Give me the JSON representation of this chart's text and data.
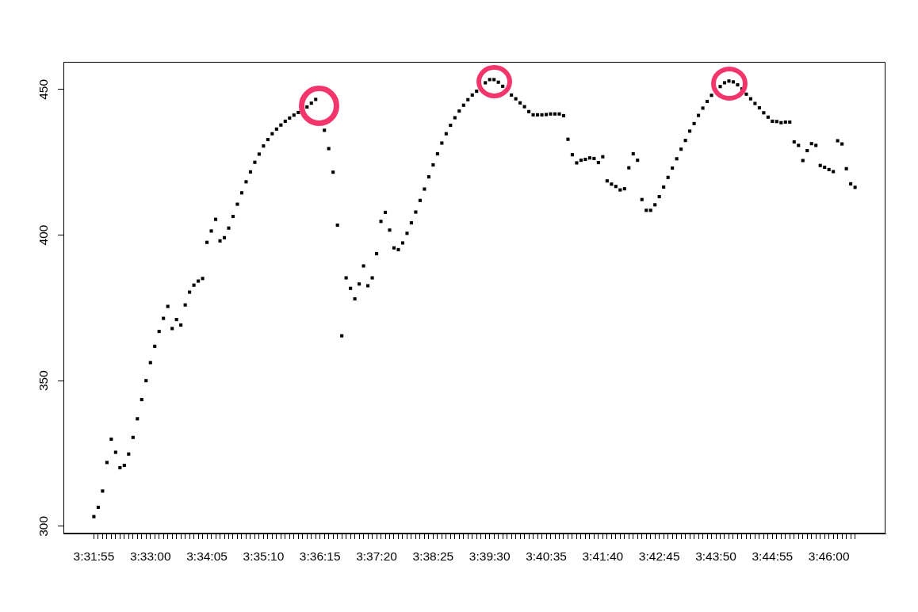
{
  "chart_data": {
    "type": "scatter",
    "categories": [
      "3:31:55",
      null,
      null,
      null,
      null,
      null,
      null,
      null,
      null,
      null,
      null,
      null,
      null,
      "3:33:00",
      null,
      null,
      null,
      null,
      null,
      null,
      null,
      null,
      null,
      null,
      null,
      null,
      "3:34:05",
      null,
      null,
      null,
      null,
      null,
      null,
      null,
      null,
      null,
      null,
      null,
      null,
      "3:35:10",
      null,
      null,
      null,
      null,
      null,
      null,
      null,
      null,
      null,
      null,
      null,
      null,
      "3:36:15",
      null,
      null,
      null,
      null,
      null,
      null,
      null,
      null,
      null,
      null,
      null,
      null,
      "3:37:20",
      null,
      null,
      null,
      null,
      null,
      null,
      null,
      null,
      null,
      null,
      null,
      null,
      "3:38:25",
      null,
      null,
      null,
      null,
      null,
      null,
      null,
      null,
      null,
      null,
      null,
      null,
      "3:39:30",
      null,
      null,
      null,
      null,
      null,
      null,
      null,
      null,
      null,
      null,
      null,
      null,
      "3:40:35",
      null,
      null,
      null,
      null,
      null,
      null,
      null,
      null,
      null,
      null,
      null,
      null,
      "3:41:40",
      null,
      null,
      null,
      null,
      null,
      null,
      null,
      null,
      null,
      null,
      null,
      null,
      "3:42:45",
      null,
      null,
      null,
      null,
      null,
      null,
      null,
      null,
      null,
      null,
      null,
      null,
      "3:43:50",
      null,
      null,
      null,
      null,
      null,
      null,
      null,
      null,
      null,
      null,
      null,
      null,
      "3:44:55",
      null,
      null,
      null,
      null,
      null,
      null,
      null,
      null,
      null,
      null,
      null,
      null,
      "3:46:00",
      null,
      null,
      null,
      null,
      null,
      null
    ],
    "values": [
      303.3,
      306.5,
      312.1,
      321.9,
      329.9,
      325.4,
      320.1,
      320.9,
      324.8,
      330.5,
      336.9,
      343.5,
      350.0,
      356.2,
      361.8,
      366.9,
      371.4,
      375.5,
      367.9,
      371.0,
      369.1,
      376.0,
      380.4,
      382.8,
      384.2,
      385.1,
      397.5,
      401.4,
      405.4,
      398.0,
      399.1,
      402.4,
      406.4,
      410.6,
      414.5,
      418.3,
      421.7,
      425.0,
      427.8,
      430.6,
      432.8,
      434.8,
      436.4,
      437.8,
      439.1,
      440.2,
      441.2,
      442.1,
      null,
      444.0,
      445.3,
      446.6,
      null,
      436.0,
      429.7,
      421.6,
      403.4,
      365.4,
      385.3,
      381.7,
      378.1,
      383.2,
      389.4,
      382.6,
      385.3,
      393.6,
      404.7,
      407.8,
      401.7,
      395.6,
      395.0,
      397.3,
      400.6,
      404.2,
      407.9,
      411.9,
      415.8,
      420.0,
      424.1,
      427.9,
      431.6,
      434.8,
      437.7,
      440.3,
      442.6,
      444.6,
      446.5,
      448.1,
      449.4,
      null,
      452.3,
      453.4,
      453.4,
      452.5,
      451.1,
      null,
      448.1,
      446.8,
      445.4,
      444.1,
      442.4,
      441.3,
      441.3,
      441.3,
      441.4,
      441.6,
      441.6,
      441.6,
      441.0,
      432.9,
      427.6,
      424.8,
      425.7,
      426.0,
      426.5,
      426.3,
      424.9,
      426.9,
      418.6,
      417.5,
      416.7,
      415.5,
      415.9,
      423.1,
      427.9,
      425.7,
      412.2,
      408.5,
      408.5,
      410.4,
      413.2,
      416.5,
      419.8,
      423.0,
      426.2,
      429.5,
      432.5,
      435.7,
      438.3,
      441.1,
      443.6,
      445.9,
      448.0,
      null,
      451.0,
      452.3,
      452.9,
      452.6,
      451.6,
      450.2,
      448.4,
      446.8,
      445.2,
      443.7,
      442.0,
      440.5,
      439.1,
      439.0,
      438.6,
      438.8,
      438.8,
      432.0,
      430.8,
      425.6,
      429.0,
      431.4,
      430.8,
      423.9,
      423.3,
      422.5,
      421.8,
      432.4,
      431.3,
      422.8,
      417.6,
      416.4
    ],
    "color": "#000000",
    "ylim": [
      297.5,
      459.5
    ],
    "yticks": [
      300,
      350,
      400,
      450
    ],
    "marker": "square"
  }
}
